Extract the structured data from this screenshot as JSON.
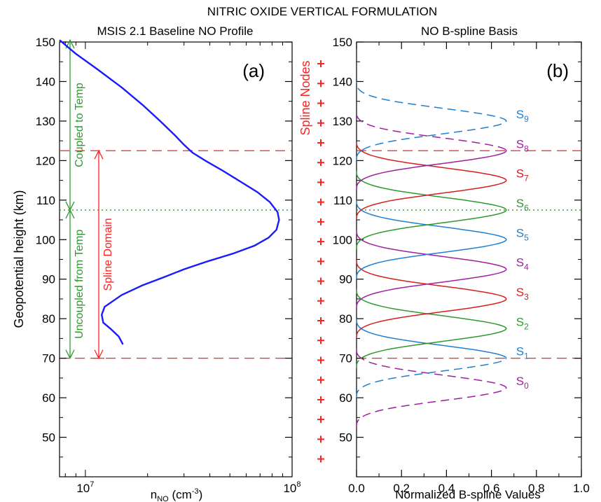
{
  "figure_title": "NITRIC OXIDE VERTICAL FORMULATION",
  "colors": {
    "profile": "#1a1aff",
    "green": "#2e9a2e",
    "red": "#ff2020",
    "s_blue": "#1f7fd0",
    "s_red": "#d42020",
    "s_green": "#2e9a2e",
    "s_purple": "#a020a0"
  },
  "chart_data": [
    {
      "type": "line",
      "panel_label": "(a)",
      "title": "MSIS 2.1 Baseline NO Profile",
      "xlabel": "n",
      "xlabel_sub": "NO",
      "xlabel_unit_pre": " (cm",
      "xlabel_unit_sup": "-3",
      "xlabel_unit_post": ")",
      "ylabel": "Geopotential height (km)",
      "xscale": "log",
      "xlim": [
        7500000,
        100000000
      ],
      "ylim": [
        40,
        150
      ],
      "x_ticks": [
        {
          "value": 10000000,
          "base": "10",
          "exp": "7"
        },
        {
          "value": 100000000,
          "base": "10",
          "exp": "8"
        }
      ],
      "y_ticks": [
        "50",
        "60",
        "70",
        "80",
        "90",
        "100",
        "110",
        "120",
        "130",
        "140",
        "150"
      ],
      "series": [
        {
          "x": [
            15200000,
            14500000,
            13200000,
            12200000,
            12000000,
            12400000,
            15000000,
            19000000,
            24000000,
            30000000,
            39000000,
            52000000,
            66000000,
            77000000,
            84000000,
            86500000,
            85000000,
            78000000,
            68000000,
            55000000,
            46000000,
            38000000,
            33000000,
            30000000,
            27000000,
            23000000,
            19000000,
            15000000,
            11500000,
            9000000,
            7500000
          ],
          "y": [
            73.5,
            75.5,
            77.5,
            79,
            81,
            83,
            86,
            88.5,
            90.5,
            92.5,
            94.5,
            96.5,
            98.5,
            100.5,
            102.5,
            105,
            107,
            109.5,
            112,
            115,
            117.5,
            120,
            122,
            124,
            126.5,
            130,
            134,
            138.5,
            143,
            147,
            150.5
          ]
        }
      ],
      "hlines": [
        {
          "y": 70,
          "style": "dashed",
          "color": "red"
        },
        {
          "y": 122.5,
          "style": "dashed",
          "color": "red"
        },
        {
          "y": 107.5,
          "style": "dotted",
          "color": "green"
        }
      ],
      "annotations": [
        {
          "text": "Coupled to Temp",
          "color": "green",
          "span": [
            107.5,
            150.5
          ]
        },
        {
          "text": "Uncoupled from Temp",
          "color": "green",
          "span": [
            70,
            107.5
          ]
        },
        {
          "text": "Spline Domain",
          "color": "red",
          "span": [
            70,
            122.5
          ]
        }
      ]
    },
    {
      "type": "line",
      "panel_label": "(b)",
      "title": "NO B-spline Basis",
      "xlabel": "Normalized B-spline Values",
      "nodes_label": "Spline Nodes",
      "xlim": [
        0,
        1
      ],
      "ylim": [
        40,
        150
      ],
      "x_ticks": [
        "0.0",
        "0.2",
        "0.4",
        "0.6",
        "0.8",
        "1.0"
      ],
      "y_ticks": [
        "50",
        "60",
        "70",
        "80",
        "90",
        "100",
        "110",
        "120",
        "130",
        "140",
        "150"
      ],
      "spline_nodes": [
        44.5,
        49.5,
        54.5,
        59.5,
        64.5,
        69.5,
        74.5,
        79.5,
        84.5,
        89.5,
        94.5,
        99.5,
        104.5,
        109.5,
        114.5,
        119.5,
        124.5,
        129.5,
        134.5,
        139.5,
        144.5
      ],
      "node_spacing_km": 5.0,
      "peak_value": 0.666,
      "domain": [
        70,
        122.5
      ],
      "series": [
        {
          "name_base": "S",
          "name_sub": "0",
          "center": 62.5,
          "color": "purple"
        },
        {
          "name_base": "S",
          "name_sub": "1",
          "center": 70,
          "color": "blue"
        },
        {
          "name_base": "S",
          "name_sub": "2",
          "center": 77.5,
          "color": "green"
        },
        {
          "name_base": "S",
          "name_sub": "3",
          "center": 85,
          "color": "red"
        },
        {
          "name_base": "S",
          "name_sub": "4",
          "center": 92.5,
          "color": "purple"
        },
        {
          "name_base": "S",
          "name_sub": "5",
          "center": 100,
          "color": "blue"
        },
        {
          "name_base": "S",
          "name_sub": "6",
          "center": 107.5,
          "color": "green"
        },
        {
          "name_base": "S",
          "name_sub": "7",
          "center": 115,
          "color": "red"
        },
        {
          "name_base": "S",
          "name_sub": "8",
          "center": 122.5,
          "color": "purple"
        },
        {
          "name_base": "S",
          "name_sub": "9",
          "center": 130,
          "color": "blue"
        }
      ],
      "hlines": [
        {
          "y": 70,
          "style": "dashed",
          "color": "red"
        },
        {
          "y": 122.5,
          "style": "dashed",
          "color": "red"
        },
        {
          "y": 107.5,
          "style": "dotted",
          "color": "green"
        }
      ]
    }
  ]
}
